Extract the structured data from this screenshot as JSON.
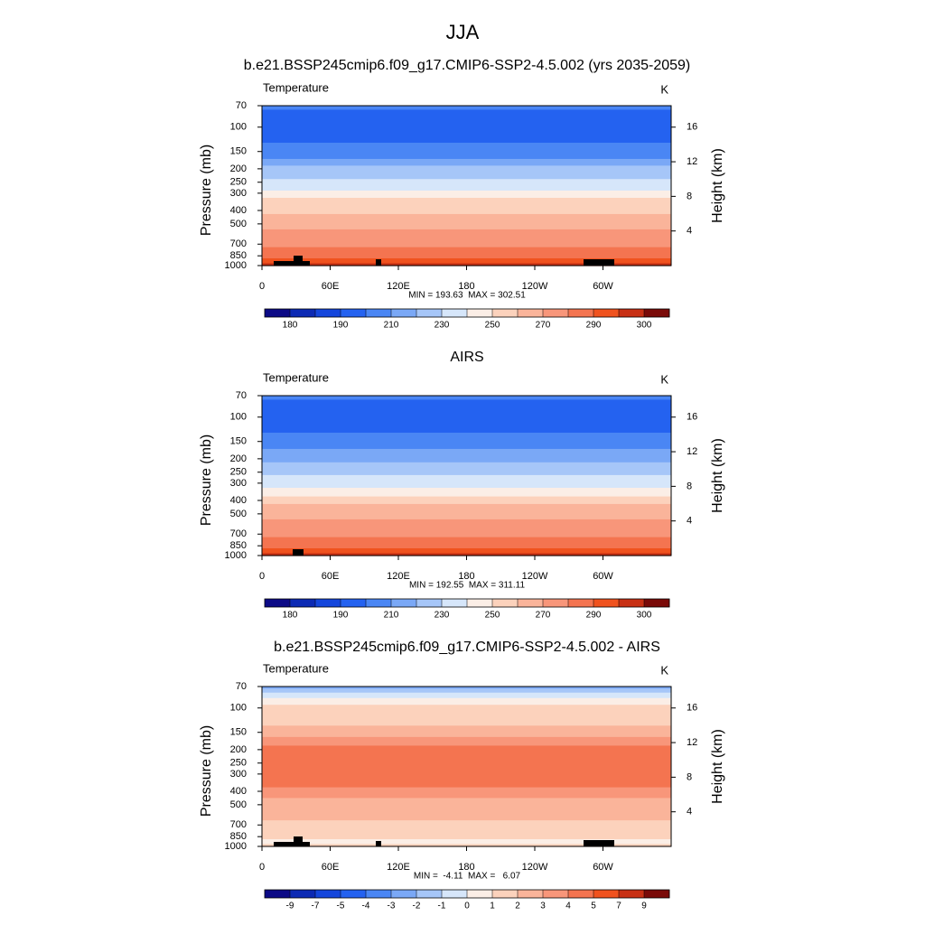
{
  "title": "JJA",
  "chart_data": [
    {
      "type": "contour",
      "title": "b.e21.BSSP245cmip6.f09_g17.CMIP6-SSP2-4.5.002 (yrs 2035-2059)",
      "subtitle_left": "Temperature",
      "subtitle_right": "K",
      "ylabel": "Pressure (mb)",
      "y2label": "Height (km)",
      "xlim": [
        0,
        360
      ],
      "xticks": [
        0,
        {
          "value": 60,
          "label": "60E"
        },
        {
          "value": 120,
          "label": "120E"
        },
        180,
        {
          "value": 240,
          "label": "120W"
        },
        {
          "value": 300,
          "label": "60W"
        }
      ],
      "ylim": [
        1000,
        70
      ],
      "log_y": true,
      "yticks": [
        70,
        100,
        150,
        200,
        250,
        300,
        400,
        500,
        700,
        850,
        1000
      ],
      "y2lim": [
        0,
        18.48
      ],
      "y2ticks": [
        4,
        8,
        12,
        16
      ],
      "stats": "MIN = 193.63  MAX = 302.51",
      "pressure": [
        70,
        80,
        90,
        100,
        120,
        140,
        160,
        180,
        200,
        225,
        250,
        275,
        300,
        350,
        400,
        450,
        500,
        600,
        700,
        775,
        850,
        925,
        1000
      ],
      "values": [
        205,
        198,
        195,
        193,
        196,
        202,
        208,
        214,
        220,
        226,
        232,
        237,
        242,
        250,
        256,
        261,
        266,
        273,
        279,
        284,
        288,
        292,
        296
      ],
      "colorbar_levels": [
        180,
        185,
        190,
        200,
        210,
        220,
        230,
        240,
        250,
        260,
        270,
        280,
        290,
        295,
        300
      ],
      "colorbar_ticks": [
        180,
        190,
        210,
        230,
        250,
        270,
        290,
        300
      ],
      "colors": [
        "#0c0a86",
        "#0c2ab4",
        "#1446dc",
        "#2462f0",
        "#4a86f4",
        "#7aa8f6",
        "#a6c6f8",
        "#d6e6fa",
        "#fbeee6",
        "#fcd2bc",
        "#fab49a",
        "#f8967a",
        "#f47450",
        "#f0521e",
        "#c83014",
        "#7a0a08"
      ]
    },
    {
      "type": "contour",
      "title": "AIRS",
      "subtitle_left": "Temperature",
      "subtitle_right": "K",
      "ylabel": "Pressure (mb)",
      "y2label": "Height (km)",
      "xlim": [
        0,
        360
      ],
      "xticks": [
        0,
        {
          "value": 60,
          "label": "60E"
        },
        {
          "value": 120,
          "label": "120E"
        },
        180,
        {
          "value": 240,
          "label": "120W"
        },
        {
          "value": 300,
          "label": "60W"
        }
      ],
      "ylim": [
        1000,
        70
      ],
      "log_y": true,
      "yticks": [
        70,
        100,
        150,
        200,
        250,
        300,
        400,
        500,
        700,
        850,
        1000
      ],
      "y2lim": [
        0,
        18.48
      ],
      "y2ticks": [
        4,
        8,
        12,
        16
      ],
      "stats": "MIN = 192.55  MAX = 311.11",
      "pressure": [
        70,
        80,
        90,
        100,
        120,
        140,
        160,
        180,
        200,
        225,
        250,
        275,
        300,
        350,
        400,
        450,
        500,
        600,
        700,
        775,
        850,
        925,
        1000
      ],
      "values": [
        206,
        197,
        194,
        192,
        195,
        200,
        206,
        211,
        216,
        222,
        228,
        234,
        239,
        247,
        254,
        260,
        265,
        272,
        278,
        283,
        287,
        292,
        297
      ],
      "colorbar_levels": [
        180,
        185,
        190,
        200,
        210,
        220,
        230,
        240,
        250,
        260,
        270,
        280,
        290,
        295,
        300
      ],
      "colorbar_ticks": [
        180,
        190,
        210,
        230,
        250,
        270,
        290,
        300
      ],
      "colors": [
        "#0c0a86",
        "#0c2ab4",
        "#1446dc",
        "#2462f0",
        "#4a86f4",
        "#7aa8f6",
        "#a6c6f8",
        "#d6e6fa",
        "#fbeee6",
        "#fcd2bc",
        "#fab49a",
        "#f8967a",
        "#f47450",
        "#f0521e",
        "#c83014",
        "#7a0a08"
      ]
    },
    {
      "type": "contour",
      "title": "b.e21.BSSP245cmip6.f09_g17.CMIP6-SSP2-4.5.002 - AIRS",
      "subtitle_left": "Temperature",
      "subtitle_right": "K",
      "ylabel": "Pressure (mb)",
      "y2label": "Height (km)",
      "xlim": [
        0,
        360
      ],
      "xticks": [
        0,
        {
          "value": 60,
          "label": "60E"
        },
        {
          "value": 120,
          "label": "120E"
        },
        180,
        {
          "value": 240,
          "label": "120W"
        },
        {
          "value": 300,
          "label": "60W"
        }
      ],
      "ylim": [
        1000,
        70
      ],
      "log_y": true,
      "yticks": [
        70,
        100,
        150,
        200,
        250,
        300,
        400,
        500,
        700,
        850,
        1000
      ],
      "y2lim": [
        0,
        18.48
      ],
      "y2ticks": [
        4,
        8,
        12,
        16
      ],
      "stats": "MIN =  -4.11  MAX =   6.07",
      "pressure": [
        70,
        75,
        80,
        90,
        100,
        120,
        150,
        175,
        200,
        250,
        300,
        350,
        400,
        500,
        600,
        700,
        850,
        925,
        1000
      ],
      "values": [
        -2.5,
        -1.5,
        -0.5,
        0.5,
        1.5,
        1.8,
        2.5,
        3.5,
        4.2,
        4.5,
        4.2,
        4.0,
        3.5,
        2.5,
        2.0,
        1.5,
        1.2,
        0.8,
        1.5
      ],
      "colorbar_levels": [
        -9,
        -7,
        -5,
        -4,
        -3,
        -2,
        -1,
        0,
        1,
        2,
        3,
        4,
        5,
        7,
        9
      ],
      "colorbar_ticks": [
        -9,
        -7,
        -5,
        -4,
        -3,
        -2,
        -1,
        0,
        1,
        2,
        3,
        4,
        5,
        7,
        9
      ],
      "colors": [
        "#0c0a86",
        "#0c2ab4",
        "#1446dc",
        "#2462f0",
        "#4a86f4",
        "#7aa8f6",
        "#a6c6f8",
        "#d6e6fa",
        "#fbeee6",
        "#fcd2bc",
        "#fab49a",
        "#f8967a",
        "#f47450",
        "#f0521e",
        "#c83014",
        "#7a0a08"
      ]
    }
  ]
}
